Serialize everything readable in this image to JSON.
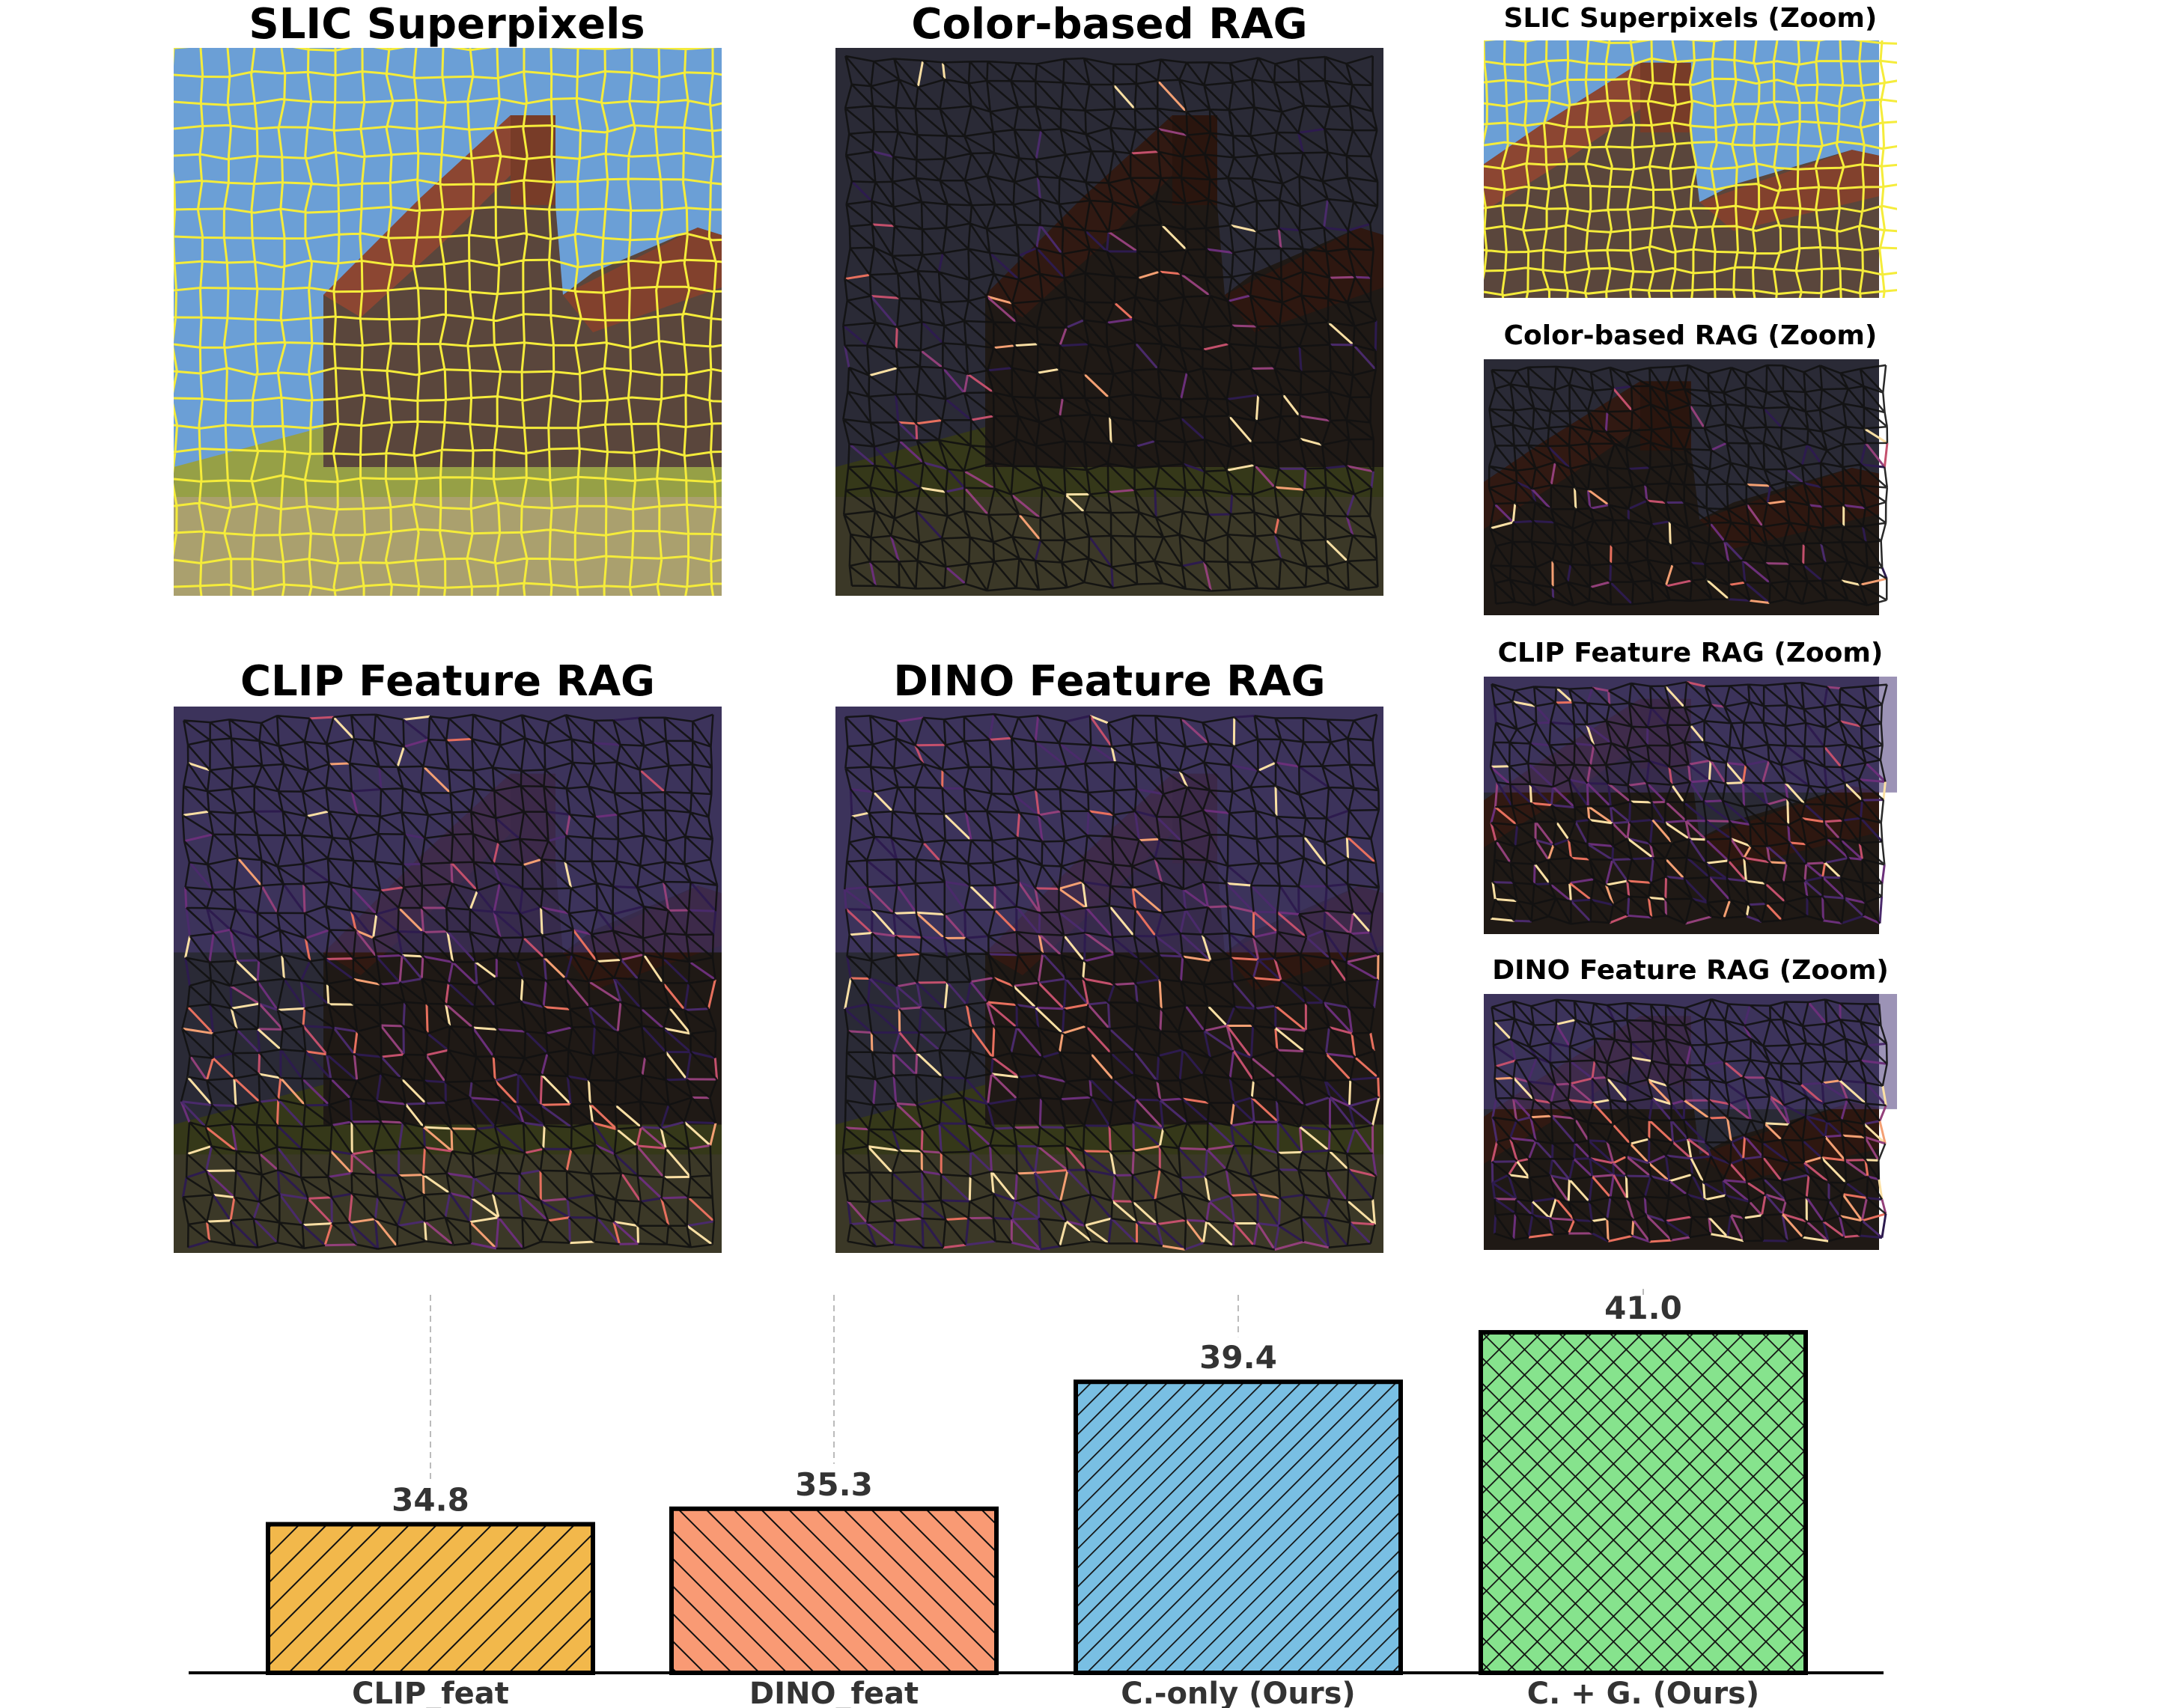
{
  "panels": [
    {
      "title": "SLIC Superpixels",
      "kind": "slic"
    },
    {
      "title": "Color-based RAG",
      "kind": "color"
    },
    {
      "title": "CLIP Feature RAG",
      "kind": "clip"
    },
    {
      "title": "DINO Feature RAG",
      "kind": "dino"
    },
    {
      "title": "SLIC Superpixels (Zoom)",
      "kind": "slic"
    },
    {
      "title": "Color-based RAG (Zoom)",
      "kind": "color"
    },
    {
      "title": "CLIP Feature RAG (Zoom)",
      "kind": "clip"
    },
    {
      "title": "DINO Feature RAG (Zoom)",
      "kind": "dino"
    }
  ],
  "chart_data": {
    "type": "bar",
    "categories": [
      "CLIP_feat",
      "DINO_feat",
      "C.-only (Ours)",
      "C. + G. (Ours)"
    ],
    "values": [
      34.8,
      35.3,
      39.4,
      41.0
    ],
    "value_labels": [
      "34.8",
      "35.3",
      "39.4",
      "41.0"
    ],
    "colors": [
      "#F2B84B",
      "#F99A74",
      "#79BFE3",
      "#86E38D"
    ],
    "hatch": [
      "forward-diagonal",
      "back-diagonal",
      "forward-diagonal-dense",
      "cross"
    ],
    "ylim": [
      30,
      42.5
    ],
    "grid": "vertical-dashed",
    "title": "",
    "xlabel": "",
    "ylabel": ""
  }
}
